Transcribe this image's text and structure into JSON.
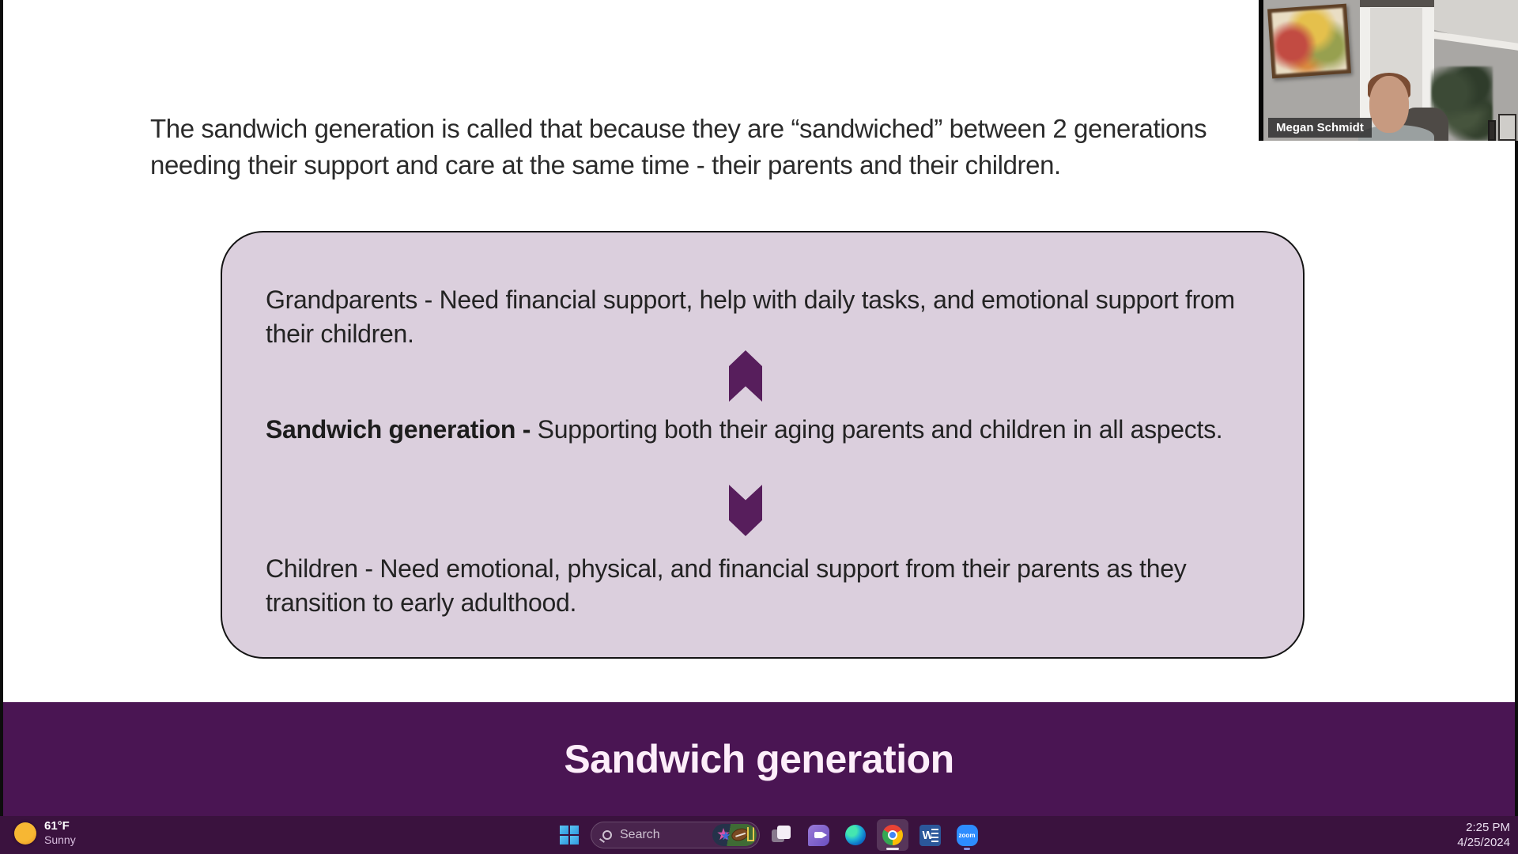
{
  "meeting": {
    "participant_name": "Megan Schmidt"
  },
  "slide": {
    "heading_line1": "The sandwich generation is called that because they are “sandwiched” between 2 generations",
    "heading_line2": "needing their support and care at the same time - their parents and their children.",
    "diagram": {
      "items": [
        {
          "lead": "Grandparents",
          "body": "  - Need financial support, help with daily tasks, and emotional support from their children."
        },
        {
          "lead": "Sandwich generation -",
          "body": " Supporting both their aging parents and children in all aspects."
        },
        {
          "lead": "Children",
          "body": " - Need emotional, physical, and financial support from their parents as they transition to early adulthood."
        }
      ],
      "arrows": [
        "up",
        "down"
      ]
    },
    "banner_title": "Sandwich generation"
  },
  "taskbar": {
    "weather": {
      "temperature": "61°F",
      "condition": "Sunny"
    },
    "search": {
      "label": "Search"
    },
    "icons": [
      "start",
      "search",
      "task-view",
      "video-chat",
      "edge",
      "chrome",
      "word",
      "zoom"
    ],
    "word_glyph": "W",
    "zoom_glyph": "zoom",
    "clock": {
      "time": "2:25 PM",
      "date": "4/25/2024"
    }
  },
  "colors": {
    "banner_purple": "#4a1553",
    "taskbar_purple": "#3a123e",
    "box_fill": "#dbcfdd",
    "arrow_purple": "#571e5c"
  }
}
